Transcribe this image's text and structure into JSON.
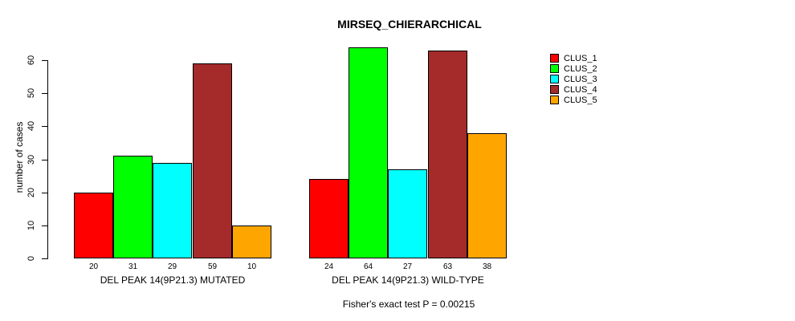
{
  "chart_data": {
    "type": "bar",
    "title": "MIRSEQ_CHIERARCHICAL",
    "ylabel": "number of cases",
    "xlabel": "",
    "ylim": [
      0,
      60
    ],
    "yticks": [
      0,
      10,
      20,
      30,
      40,
      50,
      60
    ],
    "grid": false,
    "legend_position": "right",
    "categories": [
      "DEL PEAK 14(9P21.3) MUTATED",
      "DEL PEAK 14(9P21.3) WILD-TYPE"
    ],
    "series": [
      {
        "name": "CLUS_1",
        "color": "#FF0000",
        "values": [
          20,
          24
        ]
      },
      {
        "name": "CLUS_2",
        "color": "#00FF00",
        "values": [
          31,
          64
        ]
      },
      {
        "name": "CLUS_3",
        "color": "#00FFFF",
        "values": [
          29,
          27
        ]
      },
      {
        "name": "CLUS_4",
        "color": "#A52A2A",
        "values": [
          59,
          63
        ]
      },
      {
        "name": "CLUS_5",
        "color": "#FFA500",
        "values": [
          10,
          38
        ]
      }
    ],
    "bar_value_labels": [
      [
        "20",
        "31",
        "29",
        "59",
        "10"
      ],
      [
        "24",
        "64",
        "27",
        "63",
        "38"
      ]
    ],
    "annotation": "Fisher's exact test P = 0.00215",
    "colors": {
      "axis": "#000000",
      "text": "#000000",
      "background": "#FFFFFF"
    }
  }
}
